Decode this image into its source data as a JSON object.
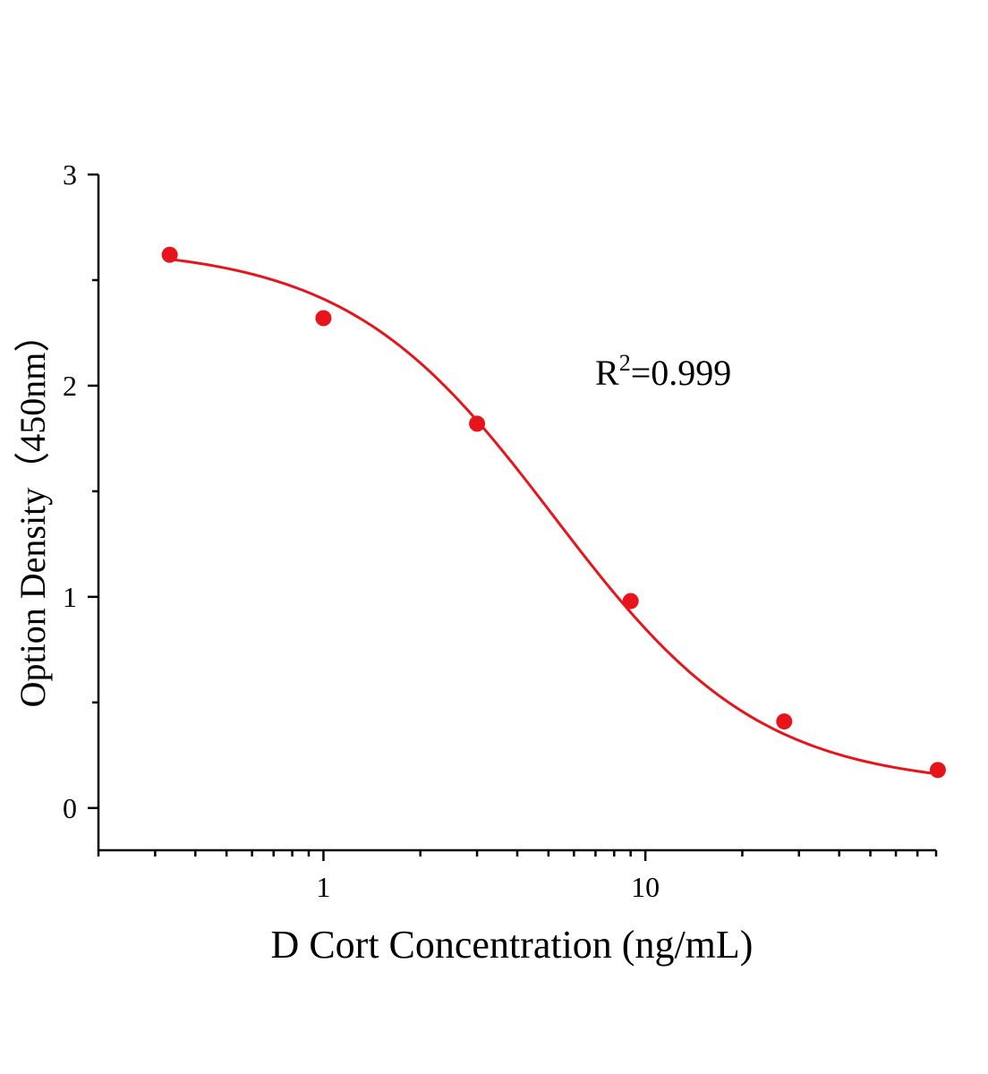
{
  "chart_data": {
    "type": "scatter",
    "xscale": "log",
    "xlabel": "D Cort Concentration (ng/mL)",
    "ylabel": "Option Density（450nm）",
    "xlim": [
      0.2,
      80
    ],
    "ylim": [
      -0.2,
      3
    ],
    "xticks": [
      {
        "value": 1,
        "label": "1"
      },
      {
        "value": 10,
        "label": "10"
      }
    ],
    "yticks": [
      {
        "value": 0,
        "label": "0"
      },
      {
        "value": 1,
        "label": "1"
      },
      {
        "value": 2,
        "label": "2"
      },
      {
        "value": 3,
        "label": "3"
      }
    ],
    "series": [
      {
        "points": [
          {
            "x": 0.333,
            "y": 2.62
          },
          {
            "x": 1,
            "y": 2.32
          },
          {
            "x": 3,
            "y": 1.82
          },
          {
            "x": 9,
            "y": 0.98
          },
          {
            "x": 27,
            "y": 0.41
          },
          {
            "x": 81,
            "y": 0.18
          }
        ],
        "color": "#e8141b"
      }
    ],
    "fit": {
      "model": "4PL",
      "top": 2.66,
      "bottom": 0.1,
      "ec50": 5.2,
      "hill": 1.35,
      "color": "#e8141b"
    },
    "annotation": {
      "base": "R",
      "sup": "2",
      "rest": "=0.999"
    },
    "grid": false,
    "legend": "none"
  }
}
